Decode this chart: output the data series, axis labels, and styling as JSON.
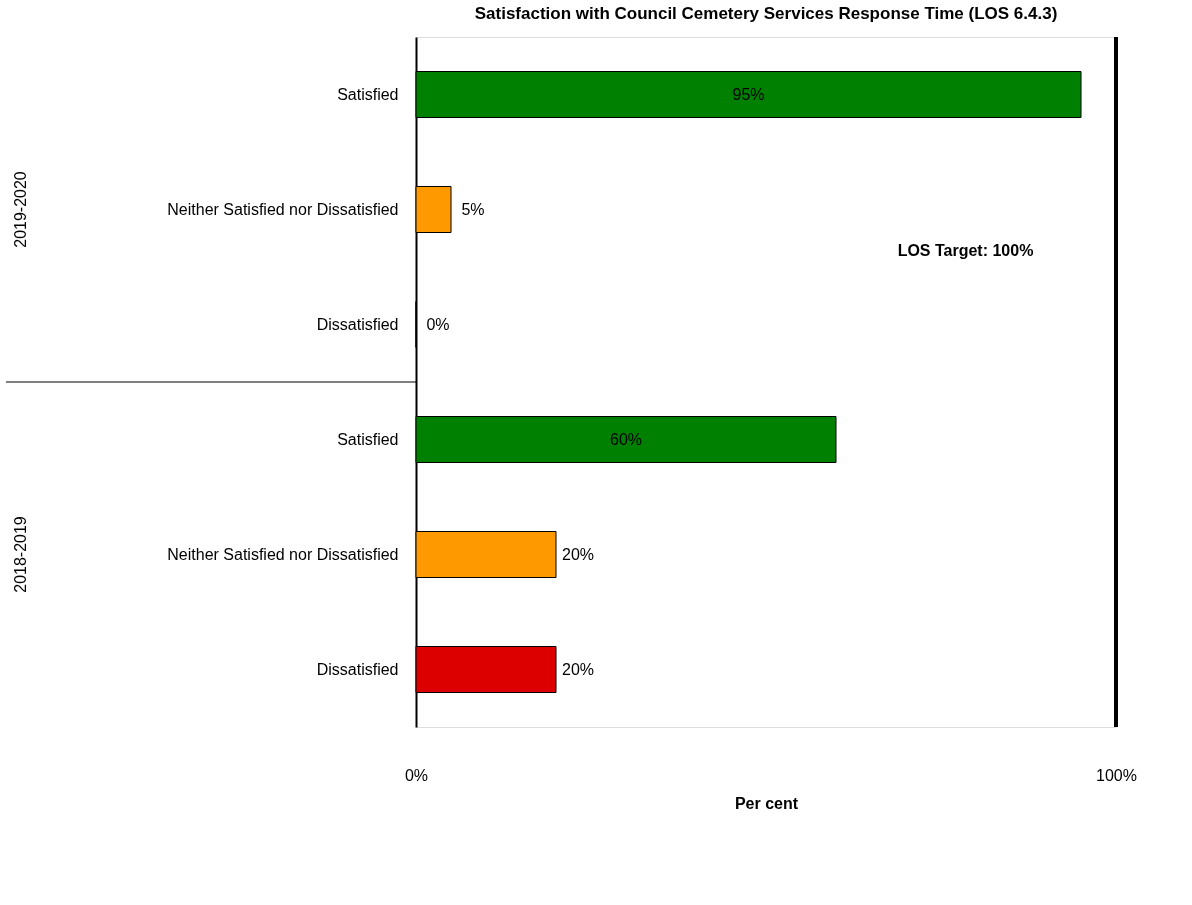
{
  "chart_data": {
    "type": "bar",
    "orientation": "horizontal",
    "title": "Satisfaction with Council Cemetery Services Response Time (LOS 6.4.3)",
    "xlabel": "Per cent",
    "categories": [
      "Satisfied",
      "Neither Satisfied nor Dissatisfied",
      "Dissatisfied",
      "Satisfied",
      "Neither Satisfied nor Dissatisfied",
      "Dissatisfied"
    ],
    "values": [
      95,
      5,
      0,
      60,
      20,
      20
    ],
    "colors": [
      "#008000",
      "#ff9900",
      "#000000",
      "#008000",
      "#ff9900",
      "#dd0000"
    ],
    "value_labels": [
      "95%",
      "5%",
      "0%",
      "60%",
      "20%",
      "20%"
    ],
    "xlim": [
      0,
      100
    ],
    "xticks": [
      {
        "value": 0,
        "label": "0%"
      },
      {
        "value": 100,
        "label": "100%"
      }
    ],
    "annotations": [
      "2019-2020",
      "2018-2019"
    ],
    "ref_lines": [
      {
        "axis": "x",
        "value": 100,
        "label": "LOS Target: 100%",
        "color": "#000000"
      }
    ],
    "grid": false
  }
}
